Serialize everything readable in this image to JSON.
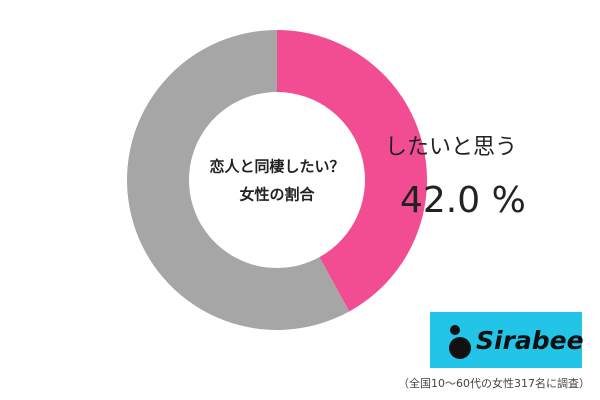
{
  "chart_data": {
    "type": "donut",
    "title": "恋人と同棲したい？",
    "subtitle": "女性の割合",
    "categories": [
      "したいと思う",
      null
    ],
    "values": [
      42.0,
      58.0
    ],
    "value_labels": [
      "42.0 %",
      null
    ],
    "colors": [
      "#f24d93",
      "#a6a6a6"
    ],
    "logo": "Sirabee",
    "note": "（全国10～60代の女性317名に調査）"
  }
}
